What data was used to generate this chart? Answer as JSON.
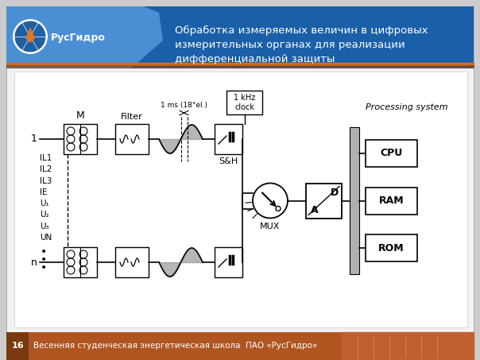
{
  "title": "Обработка измеряемых величин в цифровых\nизмерительных органах для реализации\nдифференциальной защиты",
  "footer_text": "Весенняя студенческая энергетическая школа  ПАО «РусГидро»",
  "footer_number": "16",
  "logo_text": "РусГидро",
  "signals": [
    "IL1",
    "IL2",
    "IL3",
    "IE",
    "U₁",
    "U₂",
    "U₃",
    "UN"
  ],
  "figsize": [
    6.04,
    4.53
  ],
  "dpi": 100
}
